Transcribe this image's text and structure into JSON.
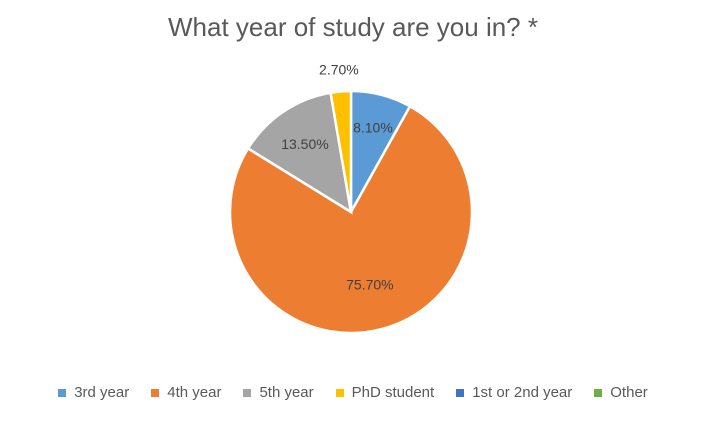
{
  "chart_data": {
    "type": "pie",
    "title": "What year of study are you in? *",
    "categories": [
      "3rd year",
      "4th year",
      "5th year",
      "PhD student",
      "1st or 2nd year",
      "Other"
    ],
    "values": [
      8.1,
      75.7,
      13.5,
      2.7,
      0,
      0
    ],
    "labels": [
      "8.10%",
      "75.70%",
      "13.50%",
      "2.70%",
      "",
      ""
    ],
    "colors": [
      "#5B9BD5",
      "#ED7D31",
      "#A5A5A5",
      "#FFC000",
      "#4472C4",
      "#70AD47"
    ],
    "legend_position": "bottom"
  }
}
